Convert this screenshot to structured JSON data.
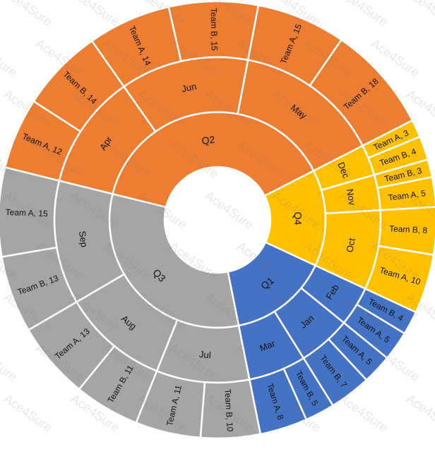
{
  "chart_data": {
    "type": "sunburst",
    "quarters": [
      {
        "label": "Q1",
        "color": "#4472C4",
        "months": [
          {
            "label": "Feb",
            "teams": [
              {
                "label": "Team B, 4",
                "value": 4
              },
              {
                "label": "Team A, 5",
                "value": 5
              }
            ]
          },
          {
            "label": "Jan",
            "teams": [
              {
                "label": "Team A, 5",
                "value": 5
              },
              {
                "label": "Team B, 7",
                "value": 7
              }
            ]
          },
          {
            "label": "Mar",
            "teams": [
              {
                "label": "Team B, 5",
                "value": 5
              },
              {
                "label": "Team A, 8",
                "value": 8
              }
            ]
          }
        ]
      },
      {
        "label": "Q3",
        "color": "#A5A5A5",
        "months": [
          {
            "label": "Jul",
            "teams": [
              {
                "label": "Team B, 10",
                "value": 10
              },
              {
                "label": "Team A, 11",
                "value": 11
              }
            ]
          },
          {
            "label": "Aug",
            "teams": [
              {
                "label": "Team B, 11",
                "value": 11
              },
              {
                "label": "Team A, 13",
                "value": 13
              }
            ]
          },
          {
            "label": "Sep",
            "teams": [
              {
                "label": "Team B, 13",
                "value": 13
              },
              {
                "label": "Team A, 15",
                "value": 15
              }
            ]
          }
        ]
      },
      {
        "label": "Q2",
        "color": "#ED7D31",
        "months": [
          {
            "label": "Apr",
            "teams": [
              {
                "label": "Team A, 12",
                "value": 12
              },
              {
                "label": "Team B, 14",
                "value": 14
              }
            ]
          },
          {
            "label": "Jun",
            "teams": [
              {
                "label": "Team A, 14",
                "value": 14
              },
              {
                "label": "Team B, 15",
                "value": 15
              }
            ]
          },
          {
            "label": "May",
            "teams": [
              {
                "label": "Team A, 15",
                "value": 15
              },
              {
                "label": "Team B, 18",
                "value": 18
              }
            ]
          }
        ]
      },
      {
        "label": "Q4",
        "color": "#FFC000",
        "months": [
          {
            "label": "Dec",
            "teams": [
              {
                "label": "Team A, 3",
                "value": 3
              },
              {
                "label": "Team B, 4",
                "value": 4
              }
            ]
          },
          {
            "label": "Nov",
            "teams": [
              {
                "label": "Team B, 3",
                "value": 3
              },
              {
                "label": "Team A, 5",
                "value": 5
              }
            ]
          },
          {
            "label": "Oct",
            "teams": [
              {
                "label": "Team B, 8",
                "value": 8
              },
              {
                "label": "Team A, 10",
                "value": 10
              }
            ]
          }
        ]
      }
    ]
  },
  "watermark": "Ace4Sure"
}
